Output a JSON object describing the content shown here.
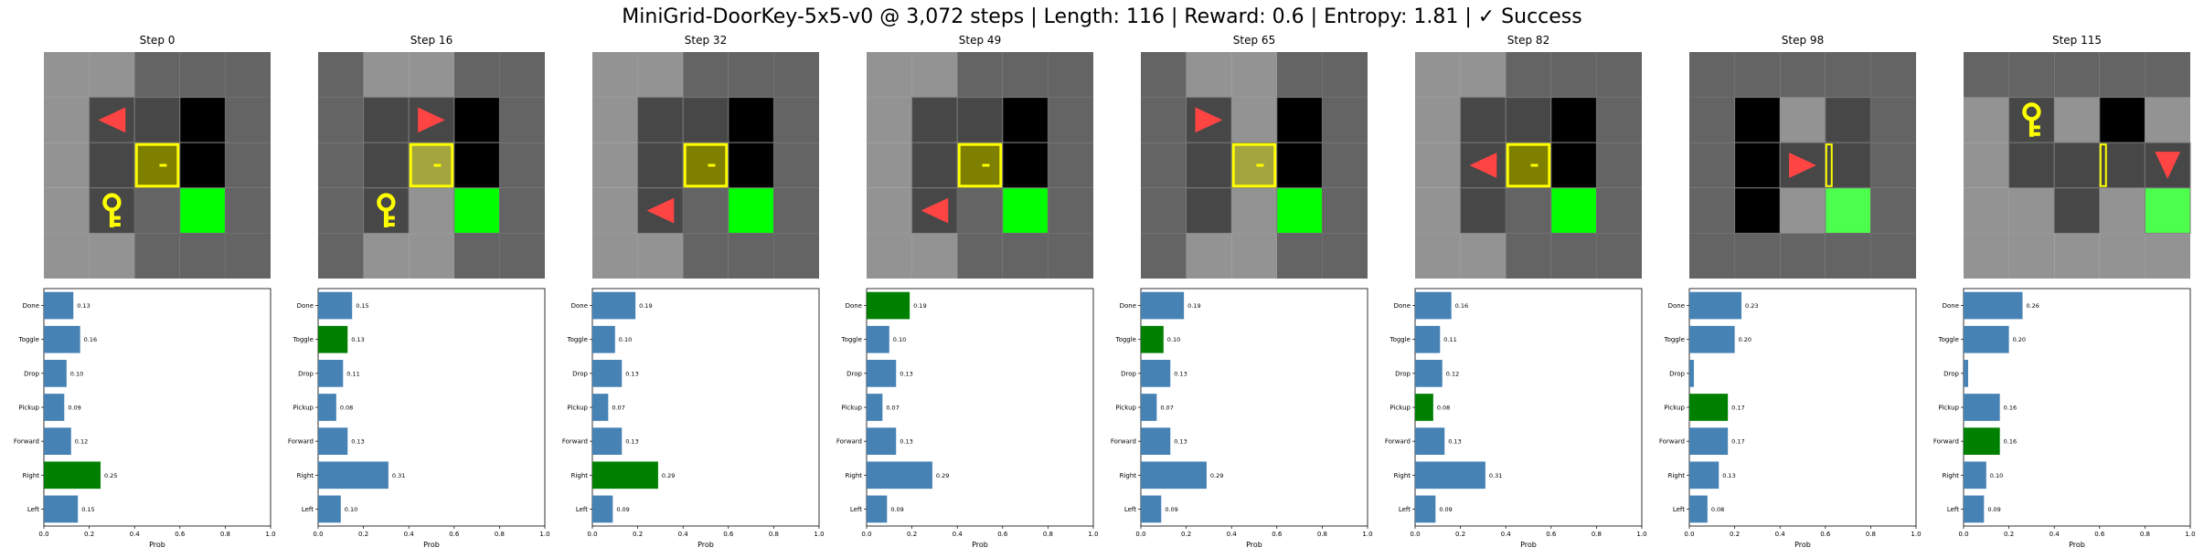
{
  "title": "MiniGrid-DoorKey-5x5-v0 @ 3,072 steps | Length: 116 | Reward: 0.6 | Entropy: 1.81 | ✓ Success",
  "colors": {
    "bar": "#4682b4",
    "chosen": "#008000",
    "floor": "#646464",
    "visible_floor": "#939393",
    "wall": "#474747",
    "unseen": "#000000",
    "goal": "#00ff00",
    "goal_visible": "#4cff4c",
    "door": "#7f7f00",
    "door_visible": "#a5a53f",
    "door_frame": "#ffff00",
    "key": "#ffff00",
    "agent": "#ff4444"
  },
  "grid_legend": {
    "0": "floor",
    "1": "visible-floor",
    "2": "wall",
    "3": "unseen",
    "4": "goal",
    "5": "goal-visible",
    "6": "door",
    "7": "door-visible",
    "8": "key-cell",
    "9": "agent-cell",
    "10": "door-open"
  },
  "chart_data": [
    {
      "type": "bar",
      "orientation": "horizontal",
      "title": "Step 0",
      "categories": [
        "Done",
        "Toggle",
        "Drop",
        "Pickup",
        "Forward",
        "Right",
        "Left"
      ],
      "values": [
        0.13,
        0.16,
        0.1,
        0.09,
        0.12,
        0.25,
        0.15
      ],
      "value_labels": [
        "0.13",
        "0.16",
        "0.10",
        "0.09",
        "0.12",
        "0.25",
        "0.15"
      ],
      "chosen": "Right",
      "xlabel": "Prob",
      "xlim": [
        0,
        1
      ],
      "xticks": [
        "0.0",
        "0.2",
        "0.4",
        "0.6",
        "0.8",
        "1.0"
      ],
      "env": {
        "agent_dir": "left",
        "grid": [
          [
            1,
            1,
            0,
            0,
            0
          ],
          [
            1,
            2,
            2,
            3,
            0
          ],
          [
            1,
            2,
            6,
            3,
            0
          ],
          [
            1,
            8,
            0,
            4,
            0
          ],
          [
            1,
            1,
            0,
            0,
            0
          ]
        ],
        "agent_pos": [
          1,
          1
        ]
      }
    },
    {
      "type": "bar",
      "orientation": "horizontal",
      "title": "Step 16",
      "categories": [
        "Done",
        "Toggle",
        "Drop",
        "Pickup",
        "Forward",
        "Right",
        "Left"
      ],
      "values": [
        0.15,
        0.13,
        0.11,
        0.08,
        0.13,
        0.31,
        0.1
      ],
      "value_labels": [
        "0.15",
        "0.13",
        "0.11",
        "0.08",
        "0.13",
        "0.31",
        "0.10"
      ],
      "chosen": "Toggle",
      "xlabel": "Prob",
      "xlim": [
        0,
        1
      ],
      "xticks": [
        "0.0",
        "0.2",
        "0.4",
        "0.6",
        "0.8",
        "1.0"
      ],
      "env": {
        "agent_dir": "right",
        "grid": [
          [
            0,
            1,
            1,
            0,
            0
          ],
          [
            0,
            2,
            2,
            3,
            0
          ],
          [
            0,
            2,
            7,
            3,
            0
          ],
          [
            0,
            8,
            1,
            4,
            0
          ],
          [
            0,
            1,
            1,
            0,
            0
          ]
        ],
        "agent_pos": [
          1,
          2
        ]
      }
    },
    {
      "type": "bar",
      "orientation": "horizontal",
      "title": "Step 32",
      "categories": [
        "Done",
        "Toggle",
        "Drop",
        "Pickup",
        "Forward",
        "Right",
        "Left"
      ],
      "values": [
        0.19,
        0.1,
        0.13,
        0.07,
        0.13,
        0.29,
        0.09
      ],
      "value_labels": [
        "0.19",
        "0.10",
        "0.13",
        "0.07",
        "0.13",
        "0.29",
        "0.09"
      ],
      "chosen": "Right",
      "xlabel": "Prob",
      "xlim": [
        0,
        1
      ],
      "xticks": [
        "0.0",
        "0.2",
        "0.4",
        "0.6",
        "0.8",
        "1.0"
      ],
      "env": {
        "agent_dir": "left",
        "grid": [
          [
            1,
            1,
            0,
            0,
            0
          ],
          [
            1,
            2,
            2,
            3,
            0
          ],
          [
            1,
            2,
            6,
            3,
            0
          ],
          [
            1,
            9,
            0,
            4,
            0
          ],
          [
            1,
            1,
            0,
            0,
            0
          ]
        ],
        "agent_pos": [
          3,
          1
        ]
      }
    },
    {
      "type": "bar",
      "orientation": "horizontal",
      "title": "Step 49",
      "categories": [
        "Done",
        "Toggle",
        "Drop",
        "Pickup",
        "Forward",
        "Right",
        "Left"
      ],
      "values": [
        0.19,
        0.1,
        0.13,
        0.07,
        0.13,
        0.29,
        0.09
      ],
      "value_labels": [
        "0.19",
        "0.10",
        "0.13",
        "0.07",
        "0.13",
        "0.29",
        "0.09"
      ],
      "chosen": "Done",
      "xlabel": "Prob",
      "xlim": [
        0,
        1
      ],
      "xticks": [
        "0.0",
        "0.2",
        "0.4",
        "0.6",
        "0.8",
        "1.0"
      ],
      "env": {
        "agent_dir": "left",
        "grid": [
          [
            1,
            1,
            0,
            0,
            0
          ],
          [
            1,
            2,
            2,
            3,
            0
          ],
          [
            1,
            2,
            6,
            3,
            0
          ],
          [
            1,
            9,
            0,
            4,
            0
          ],
          [
            1,
            1,
            0,
            0,
            0
          ]
        ],
        "agent_pos": [
          3,
          1
        ]
      }
    },
    {
      "type": "bar",
      "orientation": "horizontal",
      "title": "Step 65",
      "categories": [
        "Done",
        "Toggle",
        "Drop",
        "Pickup",
        "Forward",
        "Right",
        "Left"
      ],
      "values": [
        0.19,
        0.1,
        0.13,
        0.07,
        0.13,
        0.29,
        0.09
      ],
      "value_labels": [
        "0.19",
        "0.10",
        "0.13",
        "0.07",
        "0.13",
        "0.29",
        "0.09"
      ],
      "chosen": "Toggle",
      "xlabel": "Prob",
      "xlim": [
        0,
        1
      ],
      "xticks": [
        "0.0",
        "0.2",
        "0.4",
        "0.6",
        "0.8",
        "1.0"
      ],
      "env": {
        "agent_dir": "right",
        "grid": [
          [
            0,
            1,
            1,
            0,
            0
          ],
          [
            0,
            9,
            1,
            3,
            0
          ],
          [
            0,
            2,
            7,
            3,
            0
          ],
          [
            0,
            2,
            1,
            4,
            0
          ],
          [
            0,
            1,
            1,
            0,
            0
          ]
        ],
        "agent_pos": [
          1,
          1
        ]
      }
    },
    {
      "type": "bar",
      "orientation": "horizontal",
      "title": "Step 82",
      "categories": [
        "Done",
        "Toggle",
        "Drop",
        "Pickup",
        "Forward",
        "Right",
        "Left"
      ],
      "values": [
        0.16,
        0.11,
        0.12,
        0.08,
        0.13,
        0.31,
        0.09
      ],
      "value_labels": [
        "0.16",
        "0.11",
        "0.12",
        "0.08",
        "0.13",
        "0.31",
        "0.09"
      ],
      "chosen": "Pickup",
      "xlabel": "Prob",
      "xlim": [
        0,
        1
      ],
      "xticks": [
        "0.0",
        "0.2",
        "0.4",
        "0.6",
        "0.8",
        "1.0"
      ],
      "env": {
        "agent_dir": "left",
        "grid": [
          [
            1,
            1,
            0,
            0,
            0
          ],
          [
            1,
            2,
            2,
            3,
            0
          ],
          [
            1,
            9,
            6,
            3,
            0
          ],
          [
            1,
            2,
            0,
            4,
            0
          ],
          [
            1,
            1,
            0,
            0,
            0
          ]
        ],
        "agent_pos": [
          2,
          1
        ]
      }
    },
    {
      "type": "bar",
      "orientation": "horizontal",
      "title": "Step 98",
      "categories": [
        "Done",
        "Toggle",
        "Drop",
        "Pickup",
        "Forward",
        "Right",
        "Left"
      ],
      "values": [
        0.23,
        0.2,
        0.02,
        0.17,
        0.17,
        0.13,
        0.08
      ],
      "value_labels": [
        "0.23",
        "",
        "",
        "0.17",
        "0.17",
        "0.13",
        "0.08"
      ],
      "value_labels_visible": [
        "0.23",
        "0.20",
        "",
        "0.17",
        "0.17",
        "0.13",
        "0.08"
      ],
      "chosen": "Pickup",
      "xlabel": "Prob",
      "xlim": [
        0,
        1
      ],
      "xticks": [
        "0.0",
        "0.2",
        "0.4",
        "0.6",
        "0.8",
        "1.0"
      ],
      "env": {
        "agent_dir": "right",
        "grid": [
          [
            0,
            0,
            0,
            0,
            0
          ],
          [
            0,
            3,
            1,
            2,
            0
          ],
          [
            0,
            3,
            9,
            10,
            0
          ],
          [
            0,
            3,
            1,
            5,
            0
          ],
          [
            0,
            0,
            0,
            0,
            0
          ]
        ],
        "agent_pos": [
          2,
          2
        ]
      }
    },
    {
      "type": "bar",
      "orientation": "horizontal",
      "title": "Step 115",
      "categories": [
        "Done",
        "Toggle",
        "Drop",
        "Pickup",
        "Forward",
        "Right",
        "Left"
      ],
      "values": [
        0.26,
        0.2,
        0.02,
        0.16,
        0.16,
        0.1,
        0.09
      ],
      "value_labels": [
        "0.26",
        "0.20",
        "",
        "0.16",
        "0.16",
        "0.10",
        "0.09"
      ],
      "chosen": "Forward",
      "xlabel": "Prob",
      "xlim": [
        0,
        1
      ],
      "xticks": [
        "0.0",
        "0.2",
        "0.4",
        "0.6",
        "0.8",
        "1.0"
      ],
      "env": {
        "agent_dir": "down",
        "grid": [
          [
            0,
            0,
            0,
            0,
            0
          ],
          [
            1,
            8,
            1,
            3,
            1
          ],
          [
            1,
            2,
            2,
            10,
            9
          ],
          [
            1,
            1,
            2,
            1,
            5
          ],
          [
            1,
            1,
            1,
            1,
            1
          ]
        ],
        "agent_pos": [
          2,
          4
        ]
      }
    }
  ]
}
